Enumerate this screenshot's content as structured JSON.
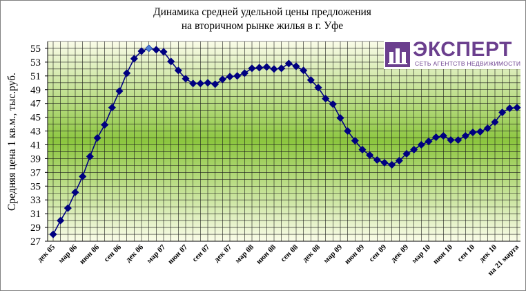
{
  "chart_data": {
    "type": "line",
    "title_lines": [
      "Динамика средней удельной цены предложения",
      "на вторичном рынке жилья в г. Уфе"
    ],
    "xlabel": "",
    "ylabel": "Средняя цена 1 кв.м., тыс.руб.",
    "ylim": [
      27,
      56
    ],
    "yticks": [
      27,
      29,
      31,
      33,
      35,
      37,
      39,
      41,
      43,
      45,
      47,
      49,
      51,
      53,
      55
    ],
    "grid": true,
    "legend": "none",
    "x_tick_labels": [
      {
        "i": 0,
        "label": "дек 05"
      },
      {
        "i": 3,
        "label": "мар 06"
      },
      {
        "i": 6,
        "label": "июн 06"
      },
      {
        "i": 9,
        "label": "сен 06"
      },
      {
        "i": 12,
        "label": "дек 06"
      },
      {
        "i": 15,
        "label": "мар 07"
      },
      {
        "i": 18,
        "label": "июн 07"
      },
      {
        "i": 21,
        "label": "сен 07"
      },
      {
        "i": 24,
        "label": "дек 07"
      },
      {
        "i": 27,
        "label": "мар 08"
      },
      {
        "i": 30,
        "label": "июн 08"
      },
      {
        "i": 33,
        "label": "сен 08"
      },
      {
        "i": 36,
        "label": "дек 08"
      },
      {
        "i": 39,
        "label": "мар 09"
      },
      {
        "i": 42,
        "label": "июн 09"
      },
      {
        "i": 45,
        "label": "сен 09"
      },
      {
        "i": 48,
        "label": "дек 09"
      },
      {
        "i": 51,
        "label": "мар 10"
      },
      {
        "i": 54,
        "label": "июн 10"
      },
      {
        "i": 57,
        "label": "сен 10"
      },
      {
        "i": 60,
        "label": "дек 10"
      },
      {
        "i": 63,
        "label": "на 21 марта"
      }
    ],
    "series": [
      {
        "values": [
          28.0,
          30.0,
          31.8,
          34.1,
          36.4,
          39.3,
          42.0,
          43.9,
          46.4,
          48.8,
          51.4,
          53.5,
          54.6,
          55.0,
          54.8,
          54.5,
          53.1,
          51.8,
          50.6,
          49.9,
          49.9,
          50.0,
          49.8,
          50.5,
          50.9,
          51.0,
          51.4,
          52.1,
          52.2,
          52.3,
          52.0,
          52.1,
          52.8,
          52.4,
          51.8,
          50.4,
          49.3,
          47.7,
          46.9,
          44.9,
          43.0,
          41.6,
          40.3,
          39.5,
          38.8,
          38.4,
          38.1,
          38.7,
          39.7,
          40.3,
          41.0,
          41.5,
          42.1,
          42.3,
          41.7,
          41.7,
          42.3,
          42.8,
          42.9,
          43.4,
          44.3,
          45.7,
          46.3,
          46.4
        ],
        "color": "#000080",
        "marker": "diamond",
        "highlight_index": 13,
        "highlight_color": "#4f7fd8"
      }
    ]
  },
  "logo": {
    "word": "ЭКСПЕРТ",
    "subtitle": "СЕТЬ АГЕНТСТВ НЕДВИЖИМОСТИ",
    "color": "#6b3f8e"
  },
  "plot_colors": {
    "bg_top": "#fafce8",
    "bg_mid": "#8cc63f",
    "bg_bottom": "#fafce8",
    "grid": "#1a1a1a",
    "line": "#000080"
  }
}
